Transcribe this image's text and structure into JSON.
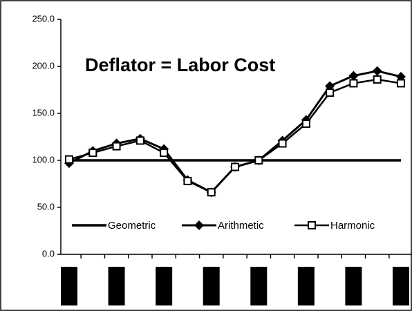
{
  "chart_data": {
    "type": "line",
    "title": "Deflator = Labor Cost",
    "categories": [
      null,
      null,
      null,
      null,
      null,
      null,
      null,
      null,
      null,
      null,
      null,
      null,
      null,
      null,
      null
    ],
    "series": [
      {
        "name": "Geometric",
        "color": "#000000",
        "marker": "none",
        "values": [
          100,
          100,
          100,
          100,
          100,
          100,
          100,
          100,
          100,
          100,
          100,
          100,
          100,
          100,
          100
        ]
      },
      {
        "name": "Arithmetic",
        "color": "#000000",
        "marker": "diamond",
        "values": [
          97,
          110,
          118,
          123,
          112,
          79,
          66,
          93,
          100,
          121,
          143,
          179,
          190,
          195,
          189
        ]
      },
      {
        "name": "Harmonic",
        "color": "#000000",
        "marker": "square",
        "values": [
          101,
          108,
          115,
          121,
          108,
          78,
          66,
          93,
          100,
          118,
          139,
          172,
          182,
          186,
          182
        ]
      }
    ],
    "ylim": [
      0,
      250
    ],
    "yticks": [
      {
        "value": 0,
        "label": "0.0"
      },
      {
        "value": 50,
        "label": "50.0"
      },
      {
        "value": 100,
        "label": "100.0"
      },
      {
        "value": 150,
        "label": "150.0"
      },
      {
        "value": 200,
        "label": "200.0"
      },
      {
        "value": 250,
        "label": "250.0"
      }
    ],
    "legend": "bottom"
  }
}
